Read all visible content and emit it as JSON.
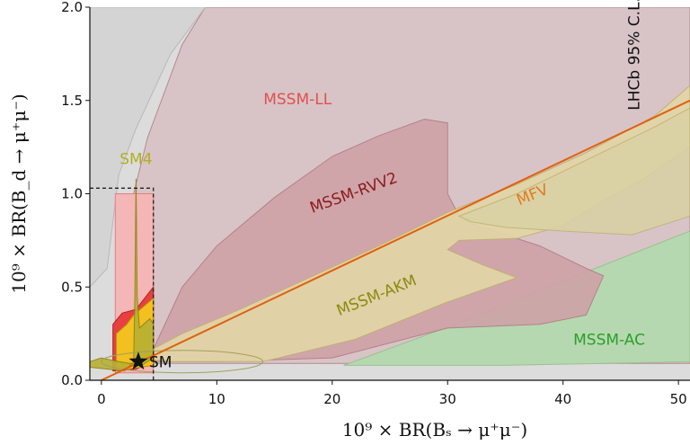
{
  "chart_data": {
    "type": "area",
    "xlabel": "10⁹ × BR(Bₛ → μ⁺μ⁻)",
    "ylabel": "10⁹ × BR(B_d → μ⁺μ⁻)",
    "xlim": [
      -1,
      51
    ],
    "ylim": [
      0,
      2.0
    ],
    "x_ticks": [
      "0",
      "10",
      "20",
      "30",
      "40",
      "50"
    ],
    "y_ticks": [
      "0.0",
      "0.5",
      "1.0",
      "1.5",
      "2.0"
    ],
    "grid": false,
    "regions": [
      {
        "name": "MSSM-LL",
        "color": "#e05050"
      },
      {
        "name": "MSSM-RVV2",
        "color": "#8b1a1a"
      },
      {
        "name": "MFV",
        "color": "#e07a20"
      },
      {
        "name": "MSSM-AKM",
        "color": "#8a8a10"
      },
      {
        "name": "MSSM-AC",
        "color": "#2aa02a"
      },
      {
        "name": "SM4",
        "color": "#b0b020"
      }
    ],
    "mfv_line": {
      "x": [
        0,
        51
      ],
      "y": [
        0,
        1.5
      ]
    },
    "sm_point": {
      "label": "SM",
      "x": 3.2,
      "y": 0.1
    },
    "lhcb_limit": {
      "label": "LHCb 95% C.L.",
      "bs_max": 4.5,
      "bd_max": 1.03
    }
  }
}
